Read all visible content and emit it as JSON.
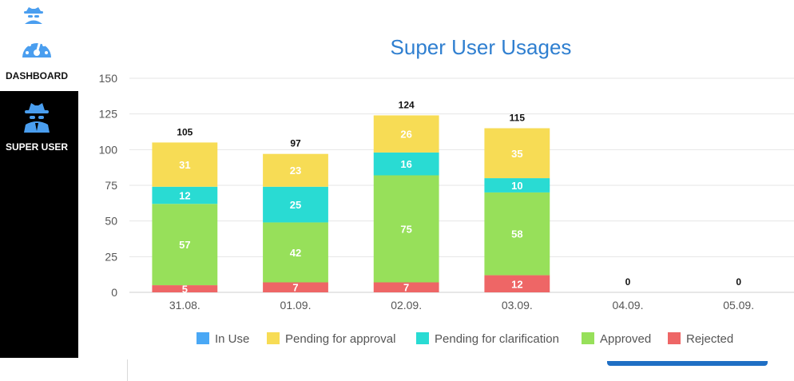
{
  "sidebar": {
    "items": [
      {
        "label": "DASHBOARD",
        "icon": "speedometer-icon"
      },
      {
        "label": "SUPER USER",
        "icon": "spy-agent-icon"
      }
    ],
    "top_icon": "spy-agent-icon",
    "active_index": 1,
    "colors": {
      "active_bg": "#000000",
      "icon": "#4a9eef"
    }
  },
  "chart_title": "Super User Usages",
  "chart_data": {
    "type": "bar",
    "stacked": true,
    "title": "Super User Usages",
    "categories": [
      "31.08.",
      "01.09.",
      "02.09.",
      "03.09.",
      "04.09.",
      "05.09."
    ],
    "series": [
      {
        "name": "In Use",
        "color": "#4aa8f5",
        "values": [
          0,
          0,
          0,
          0,
          0,
          0
        ]
      },
      {
        "name": "Pending for approval",
        "color": "#f7dc55",
        "values": [
          31,
          23,
          26,
          35,
          0,
          0
        ]
      },
      {
        "name": "Pending for clarification",
        "color": "#29dbd3",
        "values": [
          12,
          25,
          16,
          10,
          0,
          0
        ]
      },
      {
        "name": "Approved",
        "color": "#97e05a",
        "values": [
          57,
          42,
          75,
          58,
          0,
          0
        ]
      },
      {
        "name": "Rejected",
        "color": "#ee6666",
        "values": [
          5,
          7,
          7,
          12,
          0,
          0
        ]
      }
    ],
    "stack_order_bottom_to_top": [
      "Rejected",
      "Approved",
      "Pending for clarification",
      "Pending for approval",
      "In Use"
    ],
    "totals": [
      105,
      97,
      124,
      115,
      0,
      0
    ],
    "yticks": [
      0,
      25,
      50,
      75,
      100,
      125,
      150
    ],
    "ylim": [
      0,
      150
    ],
    "grid": true,
    "legend_position": "bottom"
  }
}
